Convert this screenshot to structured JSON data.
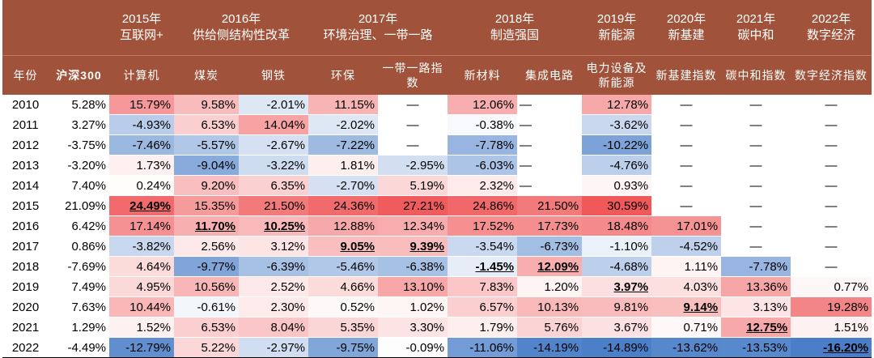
{
  "chart_data": {
    "type": "table",
    "title": "",
    "themes": [
      {
        "year": "2015年",
        "name": "互联网+",
        "span": 1
      },
      {
        "year": "2016年",
        "name": "供给侧结构性改革",
        "span": 2
      },
      {
        "year": "2017年",
        "name": "环境治理、一带一路",
        "span": 2
      },
      {
        "year": "2018年",
        "name": "制造强国",
        "span": 2
      },
      {
        "year": "2019年",
        "name": "新能源",
        "span": 1
      },
      {
        "year": "2020年",
        "name": "新基建",
        "span": 1
      },
      {
        "year": "2021年",
        "name": "碳中和",
        "span": 1
      },
      {
        "year": "2022年",
        "name": "数字经济",
        "span": 1
      }
    ],
    "columns": [
      "年份",
      "沪深300",
      "计算机",
      "煤炭",
      "钢铁",
      "环保",
      "一带一路指数",
      "新材料",
      "集成电路",
      "电力设备及新能源",
      "新基建指数",
      "碳中和指数",
      "数字经济指数"
    ],
    "years": [
      "2010",
      "2011",
      "2012",
      "2013",
      "2014",
      "2015",
      "2016",
      "2017",
      "2018",
      "2019",
      "2020",
      "2021",
      "2022"
    ],
    "na_symbol": "—",
    "values": [
      [
        5.28,
        15.79,
        9.58,
        -2.01,
        11.15,
        null,
        12.06,
        null,
        12.78,
        null,
        null,
        null
      ],
      [
        3.27,
        -4.93,
        6.53,
        14.04,
        -2.02,
        null,
        -0.38,
        null,
        -3.62,
        null,
        null,
        null
      ],
      [
        -3.75,
        -7.46,
        -5.57,
        -2.67,
        -7.22,
        null,
        -7.78,
        null,
        -10.22,
        null,
        null,
        null
      ],
      [
        -3.2,
        1.73,
        -9.04,
        -3.22,
        1.81,
        -2.95,
        -6.03,
        null,
        -4.76,
        null,
        null,
        null
      ],
      [
        7.4,
        0.24,
        9.2,
        6.35,
        -2.7,
        5.19,
        2.32,
        null,
        0.93,
        null,
        null,
        null
      ],
      [
        21.09,
        24.49,
        15.35,
        21.5,
        24.36,
        27.21,
        24.86,
        21.5,
        30.59,
        null,
        null,
        null
      ],
      [
        6.42,
        17.14,
        11.7,
        10.25,
        12.88,
        12.34,
        17.52,
        17.73,
        18.48,
        17.01,
        null,
        null
      ],
      [
        0.86,
        -3.82,
        2.56,
        3.12,
        9.05,
        9.39,
        -3.54,
        -6.73,
        -1.1,
        -4.52,
        null,
        null
      ],
      [
        -7.69,
        4.64,
        -9.77,
        -6.39,
        -5.46,
        -6.38,
        -1.45,
        12.09,
        -4.68,
        1.11,
        -7.78,
        null
      ],
      [
        7.49,
        4.95,
        10.56,
        2.52,
        4.66,
        13.1,
        7.83,
        1.2,
        3.97,
        4.03,
        13.36,
        0.77
      ],
      [
        7.63,
        10.44,
        -0.61,
        2.3,
        0.52,
        1.02,
        6.57,
        10.13,
        9.81,
        9.14,
        3.13,
        19.28
      ],
      [
        1.29,
        1.52,
        6.53,
        8.04,
        5.35,
        3.3,
        1.79,
        5.76,
        3.67,
        0.71,
        12.75,
        1.51
      ],
      [
        -4.49,
        -12.79,
        5.22,
        -2.97,
        -9.75,
        -0.09,
        -11.06,
        -14.19,
        -14.89,
        -13.62,
        -13.53,
        -16.2
      ]
    ],
    "highlighted": [
      [
        5,
        1
      ],
      [
        6,
        2
      ],
      [
        6,
        3
      ],
      [
        7,
        4
      ],
      [
        7,
        5
      ],
      [
        8,
        6
      ],
      [
        8,
        7
      ],
      [
        9,
        8
      ],
      [
        10,
        9
      ],
      [
        11,
        10
      ],
      [
        12,
        11
      ]
    ],
    "colors": {
      "header": "#a0533a",
      "positive": "#f0585a",
      "negative": "#4a7ec8",
      "neutral": "#ffffff"
    }
  }
}
